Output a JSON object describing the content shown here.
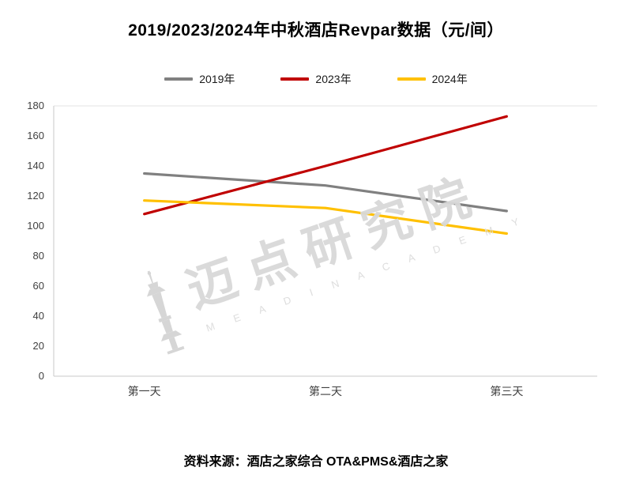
{
  "page": {
    "title": "2019/2023/2024年中秋酒店Revpar数据（元/间）",
    "source": "资料来源：酒店之家综合 OTA&PMS&酒店之家"
  },
  "watermark": {
    "text": "迈点研究院",
    "subtext": "M E A D I N   A C A D E M Y"
  },
  "chart_data": {
    "type": "line",
    "title": "2019/2023/2024年中秋酒店Revpar数据（元/间）",
    "categories": [
      "第一天",
      "第二天",
      "第三天"
    ],
    "series": [
      {
        "name": "2019年",
        "color": "#808080",
        "values": [
          135,
          127,
          110
        ]
      },
      {
        "name": "2023年",
        "color": "#c00000",
        "values": [
          108,
          140,
          173
        ]
      },
      {
        "name": "2024年",
        "color": "#ffc000",
        "values": [
          117,
          112,
          95
        ]
      }
    ],
    "ylim": [
      0,
      180
    ],
    "ytick_step": 20,
    "grid": false,
    "legend_position": "top",
    "axis_color": "#c9c9c9",
    "tick_label_color": "#404040"
  }
}
